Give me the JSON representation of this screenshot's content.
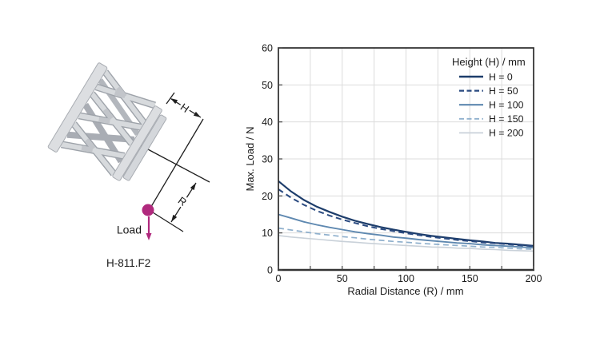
{
  "illustration": {
    "model_label": "H-811.F2",
    "load_label": "Load",
    "h_dim_label": "H",
    "r_dim_label": "R",
    "load_color": "#b0297d"
  },
  "chart_data": {
    "type": "line",
    "title": "",
    "xlabel": "Radial Distance (R) / mm",
    "ylabel": "Max. Load / N",
    "legend_title": "Height (H) / mm",
    "legend_position": "top-right-inside",
    "grid": true,
    "xlim": [
      0,
      200
    ],
    "ylim": [
      0,
      60
    ],
    "x_tick_labels": [
      0,
      50,
      100,
      150,
      200
    ],
    "y_tick_labels": [
      0,
      10,
      20,
      30,
      40,
      50,
      60
    ],
    "x_grid_step": 25,
    "y_grid_step": 10,
    "x": [
      0,
      10,
      20,
      30,
      40,
      50,
      60,
      70,
      80,
      90,
      100,
      110,
      120,
      130,
      140,
      150,
      160,
      170,
      180,
      190,
      200
    ],
    "series": [
      {
        "name": "H = 0",
        "color": "#1d3d6b",
        "dash": "solid",
        "width": 2.2,
        "values": [
          24.0,
          21.2,
          18.9,
          17.1,
          15.7,
          14.4,
          13.3,
          12.4,
          11.6,
          10.9,
          10.3,
          9.7,
          9.2,
          8.8,
          8.4,
          8.0,
          7.7,
          7.3,
          7.1,
          6.8,
          6.5
        ]
      },
      {
        "name": "H = 50",
        "color": "#2a4a80",
        "dash": "dashed",
        "width": 2.0,
        "values": [
          21.8,
          19.5,
          17.6,
          16.0,
          14.7,
          13.6,
          12.7,
          11.8,
          11.1,
          10.5,
          9.9,
          9.4,
          8.9,
          8.5,
          8.1,
          7.8,
          7.4,
          7.2,
          6.9,
          6.6,
          6.4
        ]
      },
      {
        "name": "H = 100",
        "color": "#5e88b0",
        "dash": "solid",
        "width": 1.9,
        "values": [
          15.0,
          14.0,
          13.0,
          12.2,
          11.5,
          10.9,
          10.3,
          9.8,
          9.4,
          8.9,
          8.6,
          8.2,
          7.9,
          7.6,
          7.3,
          7.1,
          6.8,
          6.6,
          6.4,
          6.2,
          6.0
        ]
      },
      {
        "name": "H = 150",
        "color": "#8fb0cd",
        "dash": "dashed",
        "width": 1.7,
        "values": [
          11.3,
          10.8,
          10.3,
          9.8,
          9.4,
          9.0,
          8.7,
          8.3,
          8.0,
          7.7,
          7.5,
          7.2,
          7.0,
          6.8,
          6.6,
          6.4,
          6.2,
          6.1,
          5.9,
          5.7,
          5.6
        ]
      },
      {
        "name": "H = 200",
        "color": "#c9d1d9",
        "dash": "solid",
        "width": 1.6,
        "values": [
          9.3,
          8.9,
          8.6,
          8.3,
          8.0,
          7.7,
          7.5,
          7.2,
          7.0,
          6.8,
          6.6,
          6.4,
          6.2,
          6.1,
          5.9,
          5.8,
          5.6,
          5.5,
          5.3,
          5.2,
          5.1
        ]
      }
    ]
  }
}
